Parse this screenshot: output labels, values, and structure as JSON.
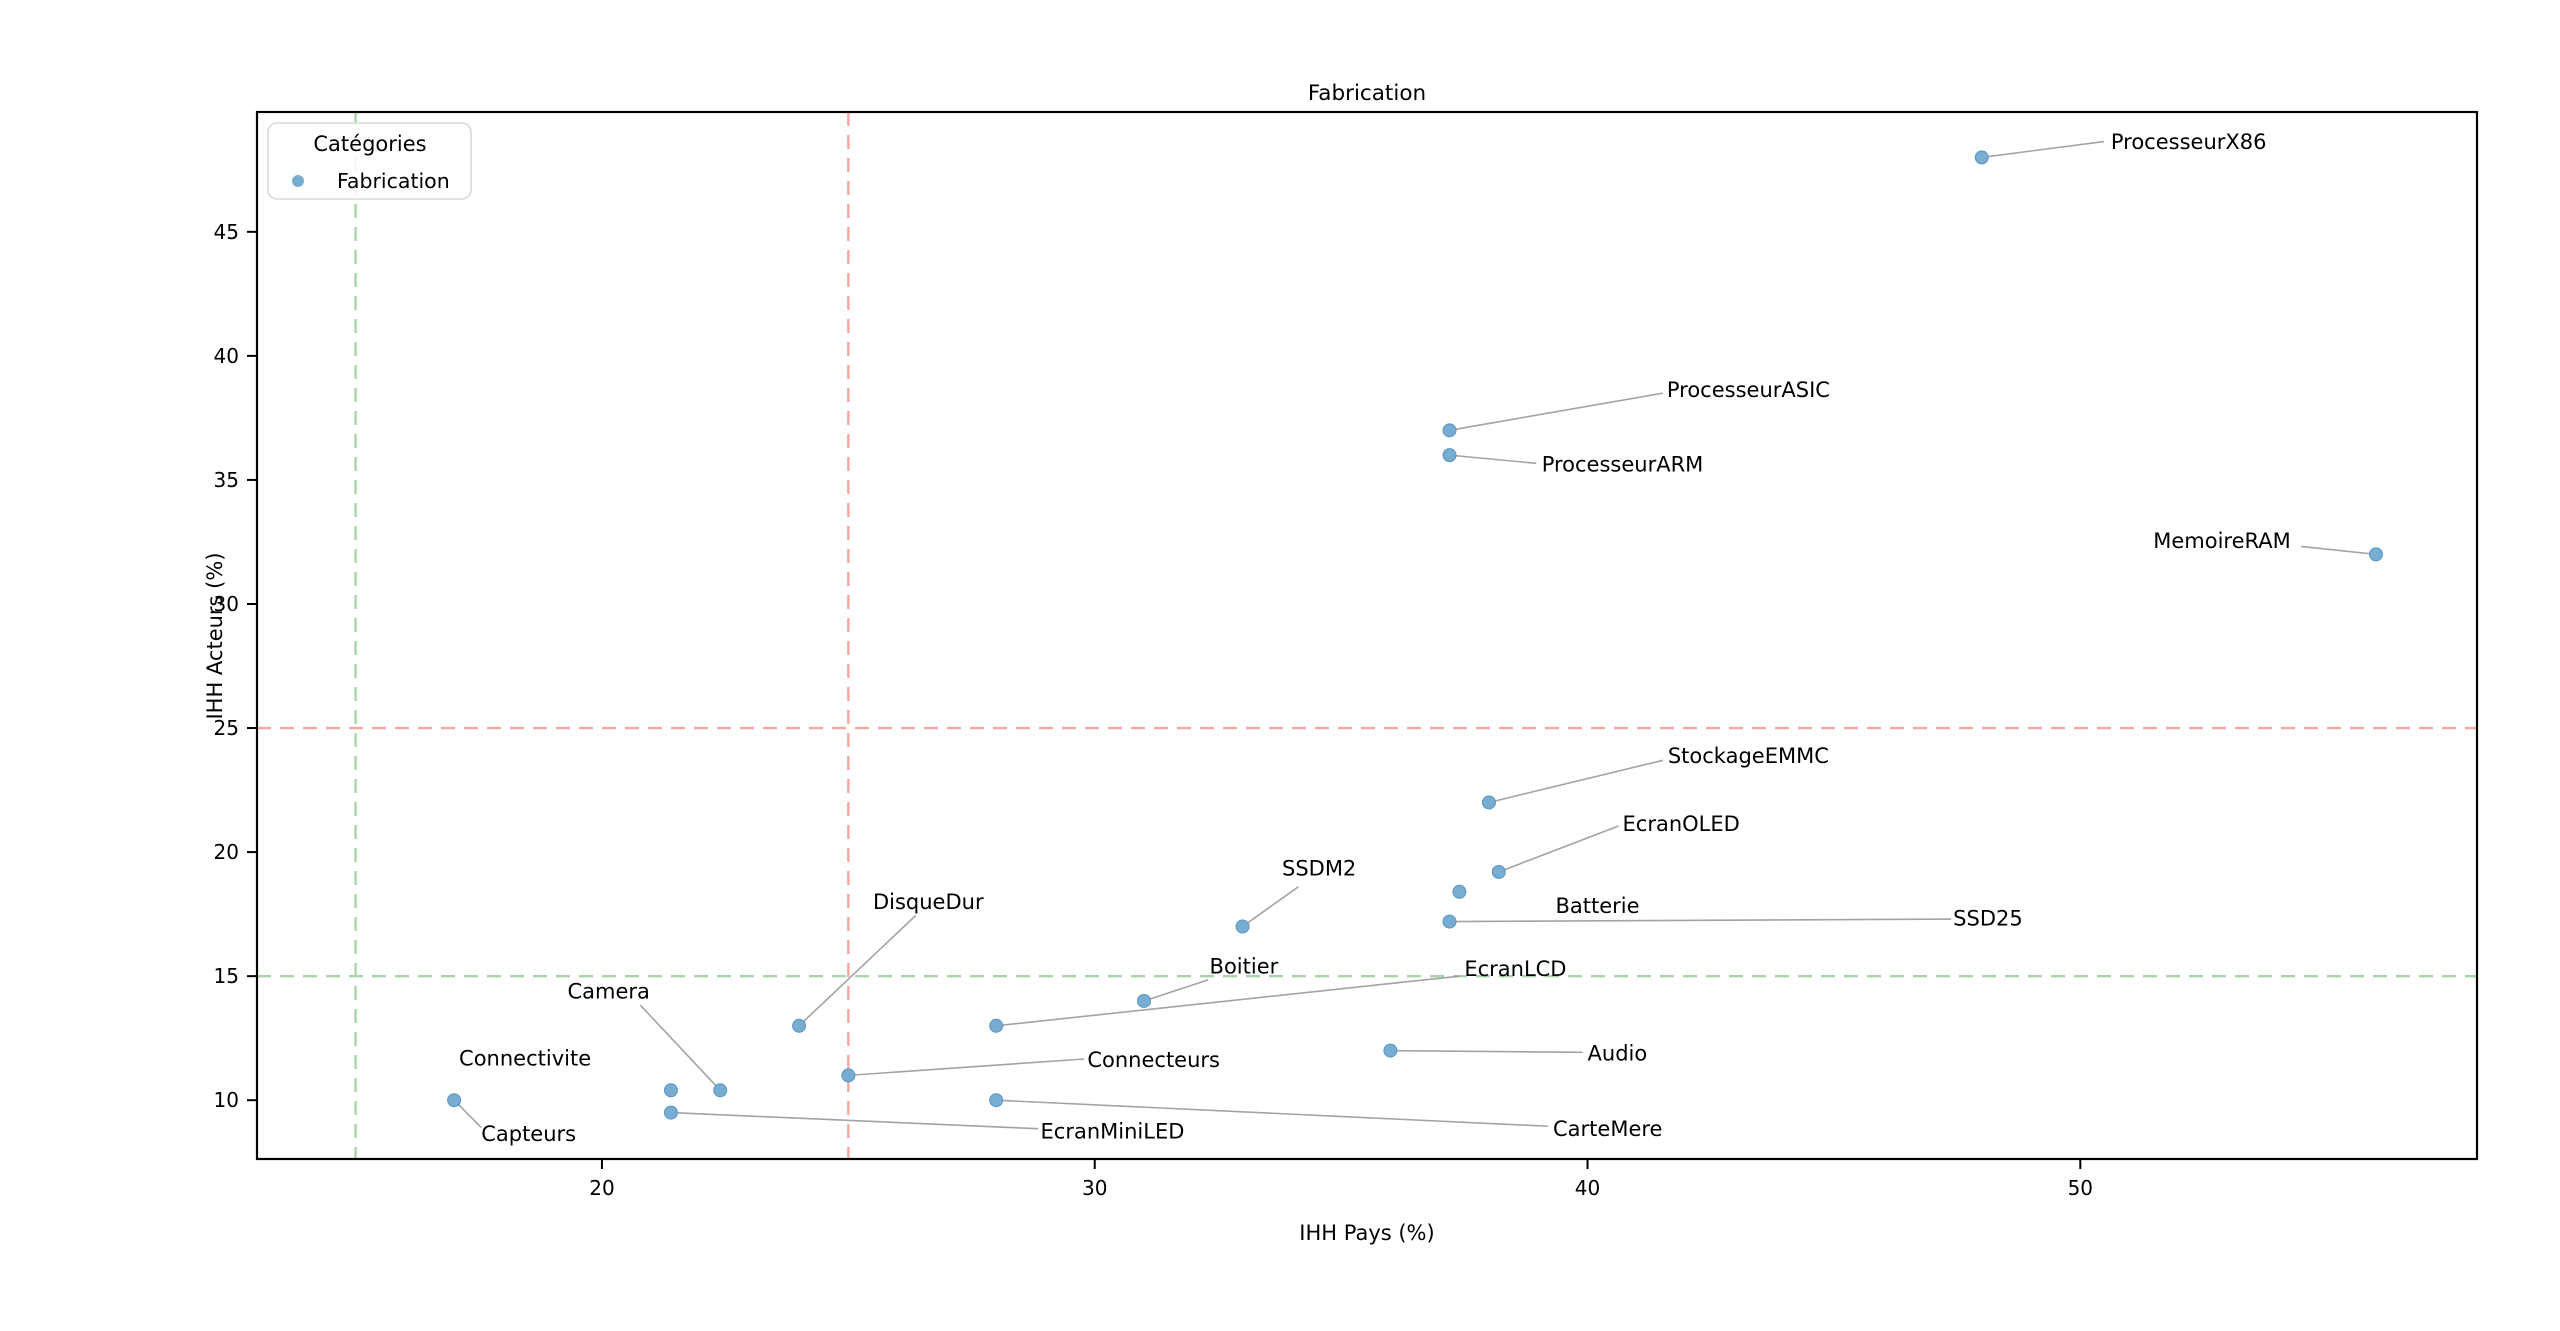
{
  "title": "Fabrication",
  "axes": {
    "x_label": "IHH Pays (%)",
    "y_label": "IHH Acteurs (%)",
    "x_ticks": [
      20,
      30,
      40,
      50
    ],
    "y_ticks": [
      10,
      15,
      20,
      25,
      30,
      35,
      40,
      45
    ]
  },
  "legend": {
    "title": "Catégories",
    "items": [
      {
        "label": "Fabrication",
        "color": "#78add2"
      }
    ]
  },
  "colors": {
    "point_fill": "#78add2",
    "point_edge": "#5b94c4",
    "leader_line": "#999999",
    "ref_red": "#f4a7a1",
    "ref_green": "#a8d5a8",
    "spine": "#000000",
    "text": "#000000",
    "legend_border": "#d8d8d8"
  },
  "ref_lines": [
    {
      "axis": "x",
      "value": 25,
      "color": "#f4a7a1"
    },
    {
      "axis": "y",
      "value": 25,
      "color": "#f4a7a1"
    },
    {
      "axis": "x",
      "value": 15,
      "color": "#a8d5a8"
    },
    {
      "axis": "y",
      "value": 15,
      "color": "#a8d5a8"
    }
  ],
  "chart_data": {
    "type": "scatter",
    "title": "Fabrication",
    "xlabel": "IHH Pays (%)",
    "ylabel": "IHH Acteurs (%)",
    "xlim": [
      13.0,
      58.05
    ],
    "ylim": [
      7.63,
      49.83
    ],
    "grid": false,
    "legend_position": "upper left",
    "series": [
      {
        "name": "Fabrication",
        "points": [
          {
            "label": "Capteurs",
            "x": 17,
            "y": 10,
            "label_pos": [
              17.55,
              8.65
            ],
            "leader_from": [
              17.55,
              8.9
            ]
          },
          {
            "label": "Connectivite",
            "x": 21.4,
            "y": 10.4,
            "label_pos": [
              17.1,
              11.7
            ],
            "leader_from": null
          },
          {
            "label": "Camera",
            "x": 22.4,
            "y": 10.4,
            "label_pos": [
              19.3,
              14.4
            ],
            "leader_from": [
              20.78,
              13.83
            ]
          },
          {
            "label": "EcranMiniLED",
            "x": 21.4,
            "y": 9.5,
            "label_pos": [
              28.9,
              8.75
            ],
            "leader_from": [
              28.85,
              8.85
            ]
          },
          {
            "label": "DisqueDur",
            "x": 24,
            "y": 13,
            "label_pos": [
              25.5,
              18.0
            ],
            "leader_from": [
              26.37,
              17.45
            ]
          },
          {
            "label": "Connecteurs",
            "x": 25,
            "y": 11,
            "label_pos": [
              29.85,
              11.65
            ],
            "leader_from": [
              29.78,
              11.66
            ]
          },
          {
            "label": "CarteMere",
            "x": 28,
            "y": 10,
            "label_pos": [
              39.3,
              8.85
            ],
            "leader_from": [
              39.2,
              8.95
            ]
          },
          {
            "label": "EcranLCD",
            "x": 28,
            "y": 13,
            "label_pos": [
              37.5,
              15.3
            ],
            "leader_from": [
              37.4,
              15.0
            ]
          },
          {
            "label": "Boitier",
            "x": 31,
            "y": 14,
            "label_pos": [
              32.33,
              15.4
            ],
            "leader_from": [
              32.3,
              14.85
            ]
          },
          {
            "label": "SSDM2",
            "x": 33,
            "y": 17,
            "label_pos": [
              33.8,
              19.35
            ],
            "leader_from": [
              34.13,
              18.6
            ]
          },
          {
            "label": "Audio",
            "x": 36,
            "y": 12,
            "label_pos": [
              40.0,
              11.9
            ],
            "leader_from": [
              39.9,
              11.93
            ]
          },
          {
            "label": "ProcesseurARM",
            "x": 37.2,
            "y": 36,
            "label_pos": [
              39.07,
              35.65
            ],
            "leader_from": [
              38.96,
              35.67
            ]
          },
          {
            "label": "ProcesseurASIC",
            "x": 37.2,
            "y": 37,
            "label_pos": [
              41.61,
              38.65
            ],
            "leader_from": [
              41.53,
              38.5
            ]
          },
          {
            "label": "SSD25",
            "x": 37.2,
            "y": 17.2,
            "label_pos": [
              47.42,
              17.35
            ],
            "leader_from": [
              47.38,
              17.3
            ]
          },
          {
            "label": "Batterie",
            "x": 37.4,
            "y": 18.4,
            "label_pos": [
              39.35,
              17.85
            ],
            "leader_from": null
          },
          {
            "label": "StockageEMMC",
            "x": 38,
            "y": 22,
            "label_pos": [
              41.63,
              23.9
            ],
            "leader_from": [
              41.53,
              23.7
            ]
          },
          {
            "label": "EcranOLED",
            "x": 38.2,
            "y": 19.2,
            "label_pos": [
              40.71,
              21.15
            ],
            "leader_from": [
              40.63,
              21.05
            ]
          },
          {
            "label": "ProcesseurX86",
            "x": 48,
            "y": 48,
            "label_pos": [
              50.62,
              48.65
            ],
            "leader_from": [
              50.48,
              48.64
            ]
          },
          {
            "label": "MemoireRAM",
            "x": 56,
            "y": 32,
            "label_pos": [
              51.48,
              32.55
            ],
            "leader_from": [
              54.48,
              32.32
            ]
          }
        ]
      }
    ]
  }
}
